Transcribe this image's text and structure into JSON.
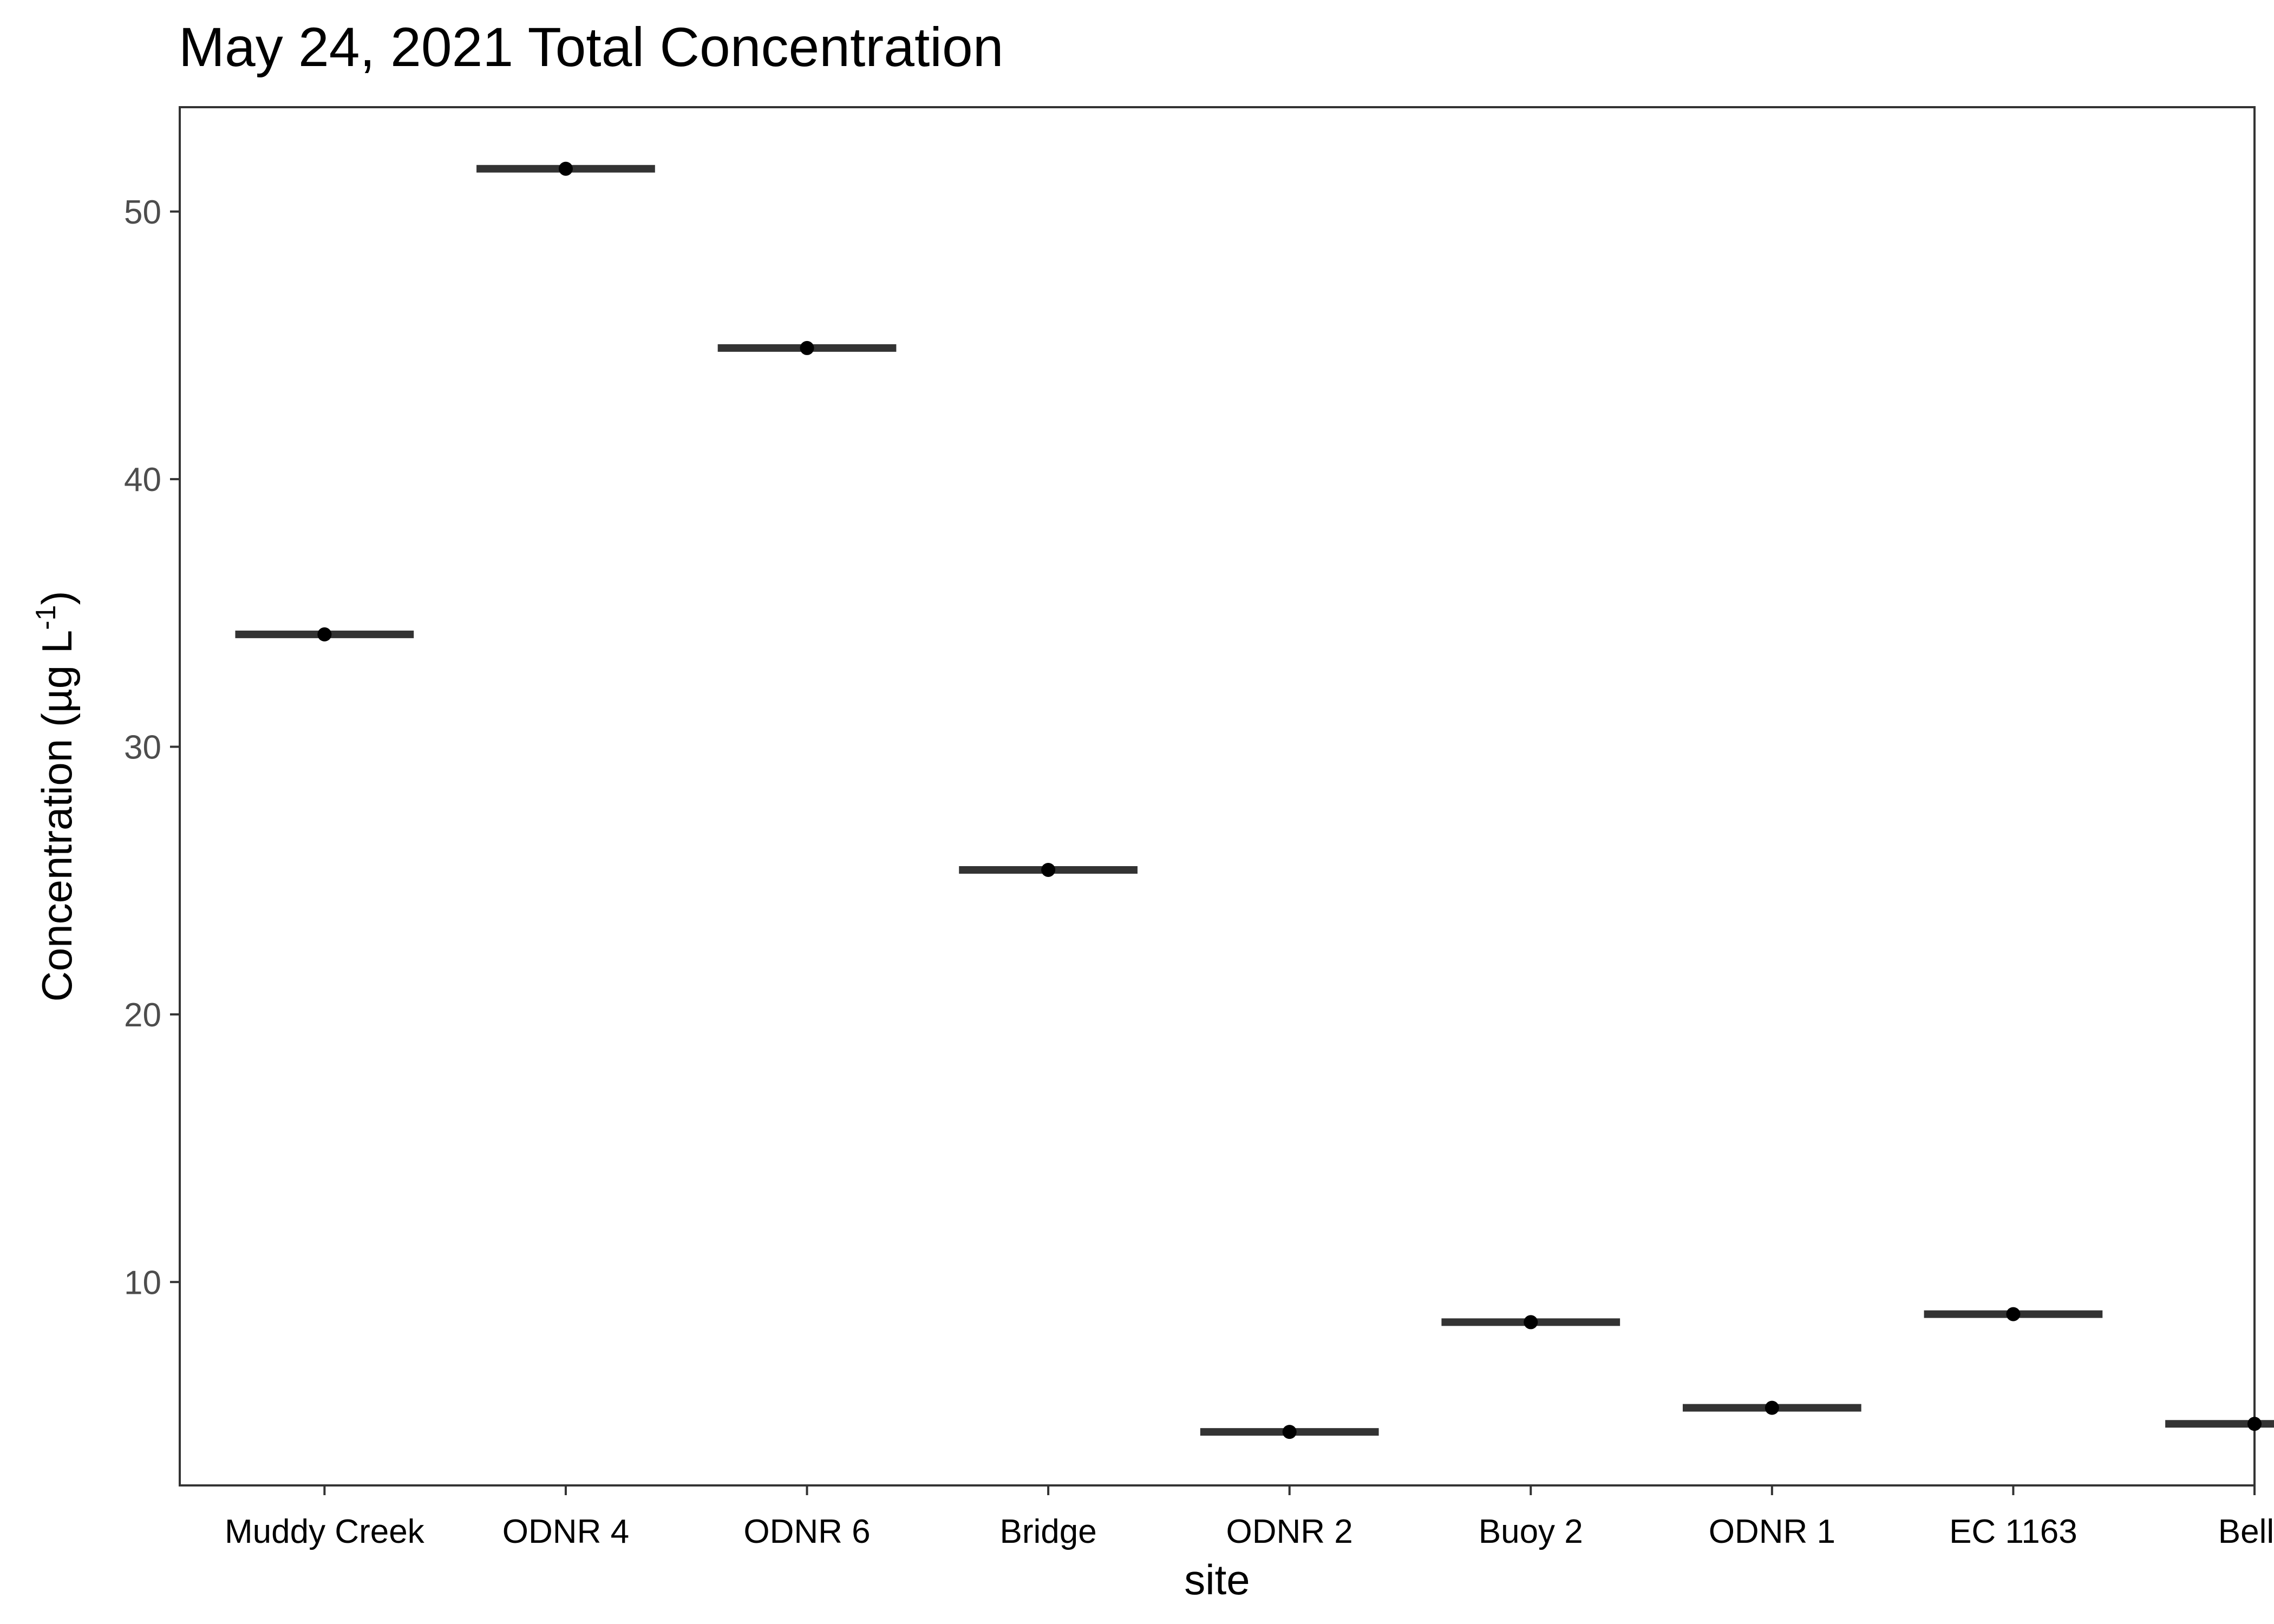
{
  "chart_data": {
    "type": "scatter",
    "title": "May 24, 2021 Total Concentration",
    "xlabel": "site",
    "ylabel": "Concentration (µg L",
    "ylabel_superscript": "-1",
    "ylabel_suffix": ")",
    "categories": [
      "Muddy Creek",
      "ODNR 4",
      "ODNR 6",
      "Bridge",
      "ODNR 2",
      "Buoy 2",
      "ODNR 1",
      "EC 1163",
      "Bells"
    ],
    "values": [
      34.2,
      51.6,
      44.9,
      25.4,
      4.4,
      8.5,
      5.3,
      8.8,
      4.7
    ],
    "ylim": [
      2.4,
      53.9
    ],
    "yticks": [
      10,
      20,
      30,
      40,
      50
    ],
    "grid": false,
    "colors": {
      "point": "#000000",
      "crossbar": "#333333",
      "panel_border": "#333333"
    }
  }
}
